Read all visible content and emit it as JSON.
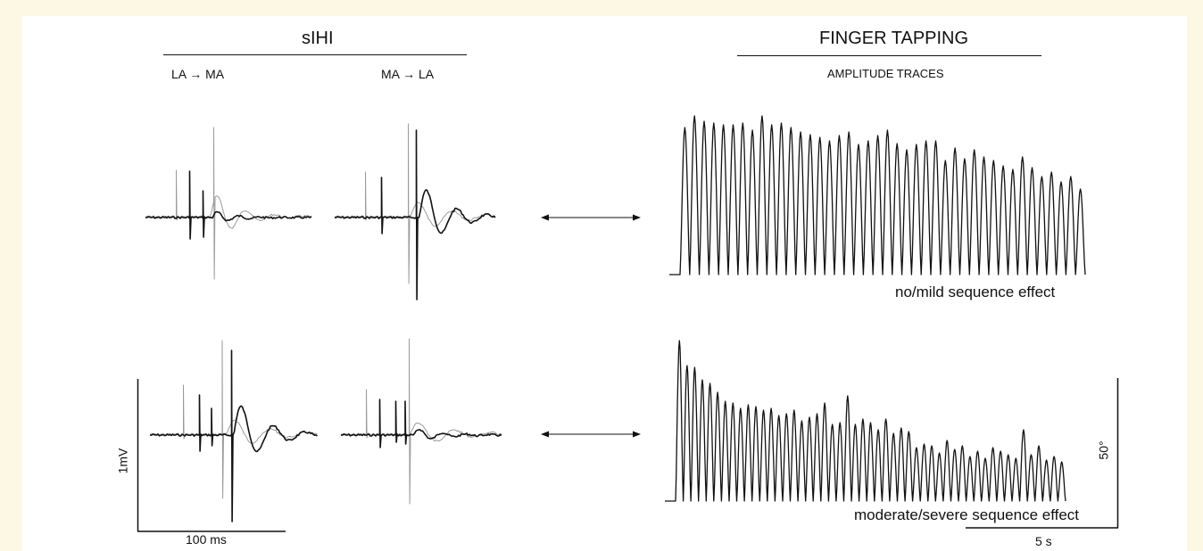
{
  "sihi": {
    "title": "sIHI",
    "col_left_label": "LA → MA",
    "col_right_label": "MA → LA",
    "scale_y_label": "1mV",
    "scale_x_label": "100 ms"
  },
  "finger_tapping": {
    "title": "FINGER TAPPING",
    "subtitle": "AMPLITUDE TRACES",
    "row1_caption": "no/mild sequence effect",
    "row2_caption": "moderate/severe sequence effect",
    "scale_y_label": "50°",
    "scale_x_label": "5 s"
  },
  "colors": {
    "trace_dark": "#111111",
    "trace_light": "#9a9a9a",
    "background": "#fdf8e3"
  }
}
